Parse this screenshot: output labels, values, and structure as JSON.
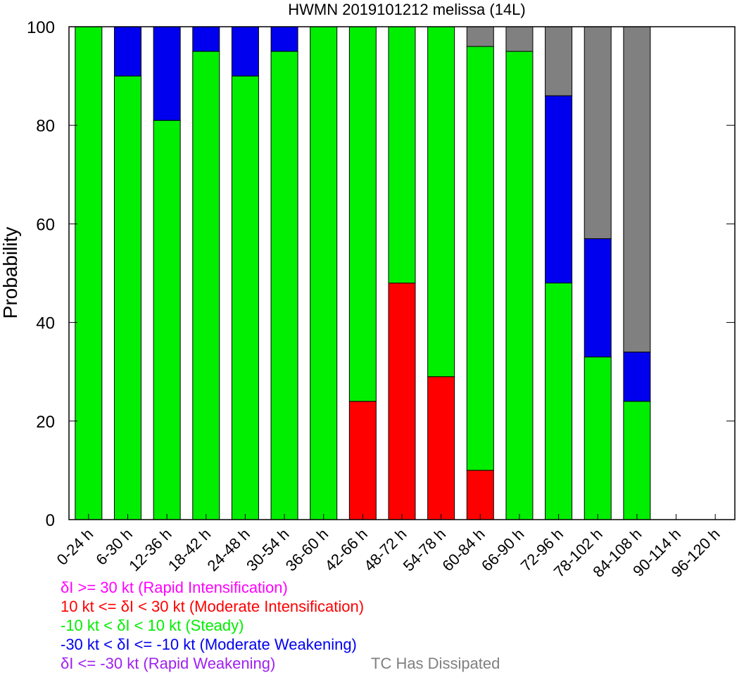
{
  "chart_data": {
    "type": "bar",
    "stacked": true,
    "title": "HWMN 2019101212 melissa (14L)",
    "xlabel": "",
    "ylabel": "Probability",
    "ylim": [
      0,
      100
    ],
    "yticks": [
      "0",
      "20",
      "40",
      "60",
      "80",
      "100"
    ],
    "grid": false,
    "categories": [
      "0-24 h",
      "6-30 h",
      "12-36 h",
      "18-42 h",
      "24-48 h",
      "30-54 h",
      "36-60 h",
      "42-66 h",
      "48-72 h",
      "54-78 h",
      "60-84 h",
      "66-90 h",
      "72-96 h",
      "78-102 h",
      "84-108 h",
      "90-114 h",
      "96-120 h"
    ],
    "series": [
      {
        "name": "δI <= -30 kt (Rapid Weakening)",
        "color": "#a020f0",
        "values": [
          0,
          0,
          0,
          0,
          0,
          0,
          0,
          0,
          0,
          0,
          0,
          0,
          0,
          0,
          0,
          0,
          0
        ]
      },
      {
        "name": "10 kt <= δI < 30 kt (Moderate Intensification)",
        "color": "#ff0000",
        "values": [
          0,
          0,
          0,
          0,
          0,
          0,
          0,
          24,
          48,
          29,
          10,
          0,
          0,
          0,
          0,
          0,
          0
        ]
      },
      {
        "name": "-10 kt < δI < 10 kt (Steady)",
        "color": "#00ee00",
        "values": [
          100,
          90,
          81,
          95,
          90,
          95,
          100,
          76,
          52,
          71,
          86,
          95,
          48,
          33,
          24,
          0,
          0
        ]
      },
      {
        "name": "-30 kt < δI <= -10 kt (Moderate Weakening)",
        "color": "#0000ee",
        "values": [
          0,
          10,
          19,
          5,
          10,
          5,
          0,
          0,
          0,
          0,
          0,
          0,
          38,
          24,
          10,
          0,
          0
        ]
      },
      {
        "name": "TC Has Dissipated",
        "color": "#808080",
        "values": [
          0,
          0,
          0,
          0,
          0,
          0,
          0,
          0,
          0,
          0,
          4,
          5,
          14,
          43,
          66,
          0,
          0
        ]
      },
      {
        "name": "δI >= 30 kt (Rapid Intensification)",
        "color": "#ff00ff",
        "values": [
          0,
          0,
          0,
          0,
          0,
          0,
          0,
          0,
          0,
          0,
          0,
          0,
          0,
          0,
          0,
          0,
          0
        ]
      }
    ],
    "legend": {
      "placement": "bottom-left",
      "entries": [
        {
          "label": "δI >= 30 kt (Rapid Intensification)",
          "color": "#ff00ff"
        },
        {
          "label": "10 kt <= δI < 30 kt (Moderate Intensification)",
          "color": "#ff0000"
        },
        {
          "label": "-10 kt < δI < 10 kt (Steady)",
          "color": "#00ee00"
        },
        {
          "label": "-30 kt < δI <= -10 kt (Moderate Weakening)",
          "color": "#0000ee"
        },
        {
          "label": "δI <= -30 kt (Rapid Weakening)",
          "color": "#a020f0"
        }
      ],
      "dissipated": {
        "label": "TC Has Dissipated",
        "color": "#808080"
      }
    }
  }
}
